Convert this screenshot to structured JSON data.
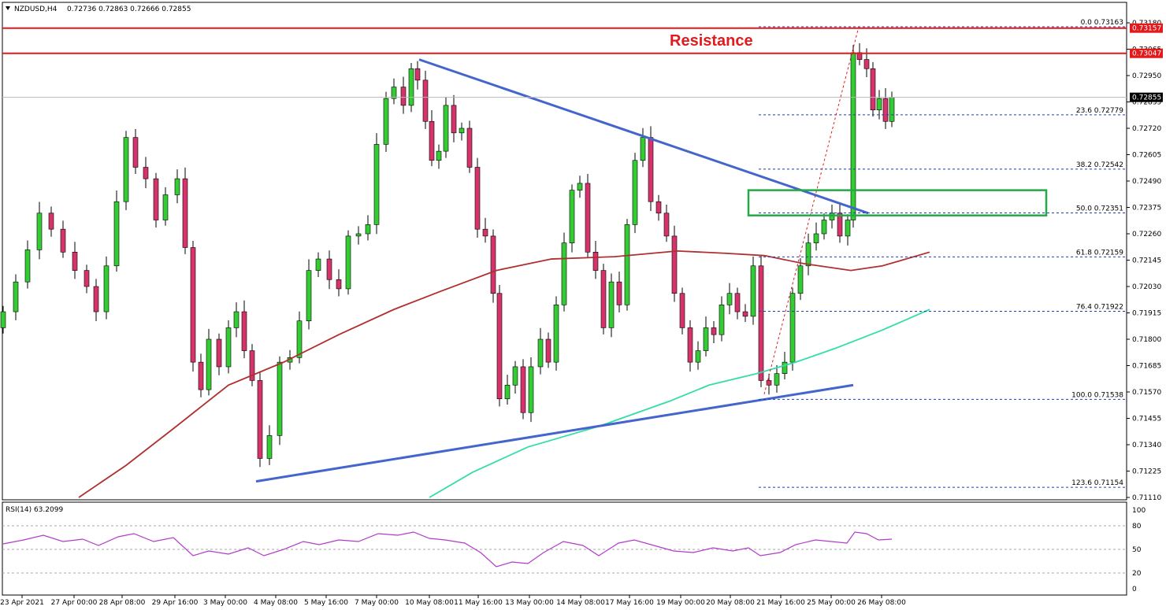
{
  "header": {
    "symbol_label": "NZDUSD,H4",
    "ohlc_label": "0.72736 0.72863 0.72666 0.72855"
  },
  "annotation": {
    "resistance_label": "Resistance",
    "resistance_color": "#e31a1c"
  },
  "rsi": {
    "label": "RSI(14) 63.2099",
    "levels": [
      "100",
      "80",
      "50",
      "20",
      "0"
    ],
    "line_color": "#b23cc9"
  },
  "chart_data": {
    "type": "candlestick",
    "title": "",
    "price_axis_labels": [
      "0.73180",
      "0.73065",
      "0.72950",
      "0.72835",
      "0.72720",
      "0.72605",
      "0.72490",
      "0.72375",
      "0.72260",
      "0.72145",
      "0.72030",
      "0.71915",
      "0.71800",
      "0.71685",
      "0.71570",
      "0.71455",
      "0.71340",
      "0.71225",
      "0.71110"
    ],
    "ylim": [
      0.7111,
      0.7318
    ],
    "x_labels": [
      "23 Apr 2021",
      "27 Apr 00:00",
      "28 Apr 08:00",
      "29 Apr 16:00",
      "3 May 00:00",
      "4 May 08:00",
      "5 May 16:00",
      "7 May 00:00",
      "10 May 08:00",
      "11 May 16:00",
      "13 May 00:00",
      "14 May 08:00",
      "17 May 16:00",
      "19 May 00:00",
      "20 May 08:00",
      "21 May 16:00",
      "25 May 00:00",
      "26 May 08:00"
    ],
    "price_tags": [
      {
        "value": "0.73157",
        "color": "#e31a1c"
      },
      {
        "value": "0.73047",
        "color": "#e31a1c"
      },
      {
        "value": "0.72855",
        "color": "#000000"
      }
    ],
    "fibonacci": [
      {
        "level": "0.0",
        "price": "0.73163"
      },
      {
        "level": "23.6",
        "price": "0.72779"
      },
      {
        "level": "38.2",
        "price": "0.72542"
      },
      {
        "level": "50.0",
        "price": "0.72351"
      },
      {
        "level": "61.8",
        "price": "0.72159"
      },
      {
        "level": "76.4",
        "price": "0.71922"
      },
      {
        "level": "100.0",
        "price": "0.71538"
      },
      {
        "level": "123.6",
        "price": "0.71154"
      }
    ],
    "resistance_levels": [
      0.73157,
      0.73047
    ],
    "current_price": 0.72855,
    "colors": {
      "bull": "#33cc33",
      "bear": "#d6336c",
      "trendline": "#4466cc",
      "ma_fast": "#b03030",
      "ma_slow": "#33ddaa",
      "zone": "#22aa44",
      "fib": "#1a3fb0"
    }
  }
}
